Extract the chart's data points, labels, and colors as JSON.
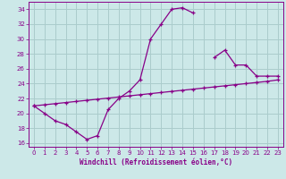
{
  "xlabel": "Windchill (Refroidissement éolien,°C)",
  "bg_color": "#cce8e8",
  "grid_color": "#aacccc",
  "line_color": "#880088",
  "xlim": [
    -0.5,
    23.5
  ],
  "ylim": [
    15.5,
    35.0
  ],
  "yticks": [
    16,
    18,
    20,
    22,
    24,
    26,
    28,
    30,
    32,
    34
  ],
  "xticks": [
    0,
    1,
    2,
    3,
    4,
    5,
    6,
    7,
    8,
    9,
    10,
    11,
    12,
    13,
    14,
    15,
    16,
    17,
    18,
    19,
    20,
    21,
    22,
    23
  ],
  "line1_x": [
    0,
    1,
    2,
    3,
    4,
    5,
    6,
    7,
    8,
    9,
    10,
    11,
    12,
    13,
    14,
    15,
    16,
    17,
    18,
    19,
    20,
    21,
    22,
    23
  ],
  "line1_y": [
    21.0,
    20.0,
    19.0,
    18.5,
    17.5,
    16.5,
    17.0,
    20.5,
    22.0,
    23.0,
    24.5,
    30.0,
    32.0,
    34.0,
    34.2,
    33.5,
    null,
    27.5,
    28.5,
    26.5,
    26.5,
    25.0,
    25.0,
    25.0
  ],
  "line2_x": [
    0,
    1,
    2,
    3,
    4,
    5,
    6,
    7,
    8,
    9,
    10,
    11,
    12,
    13,
    14,
    15,
    16,
    17,
    18,
    19,
    20,
    21,
    22,
    23
  ],
  "line2_y": [
    21.0,
    21.15,
    21.3,
    21.45,
    21.6,
    21.75,
    21.9,
    22.05,
    22.2,
    22.35,
    22.5,
    22.65,
    22.8,
    22.95,
    23.1,
    23.25,
    23.4,
    23.55,
    23.7,
    23.85,
    24.0,
    24.15,
    24.3,
    24.5
  ]
}
